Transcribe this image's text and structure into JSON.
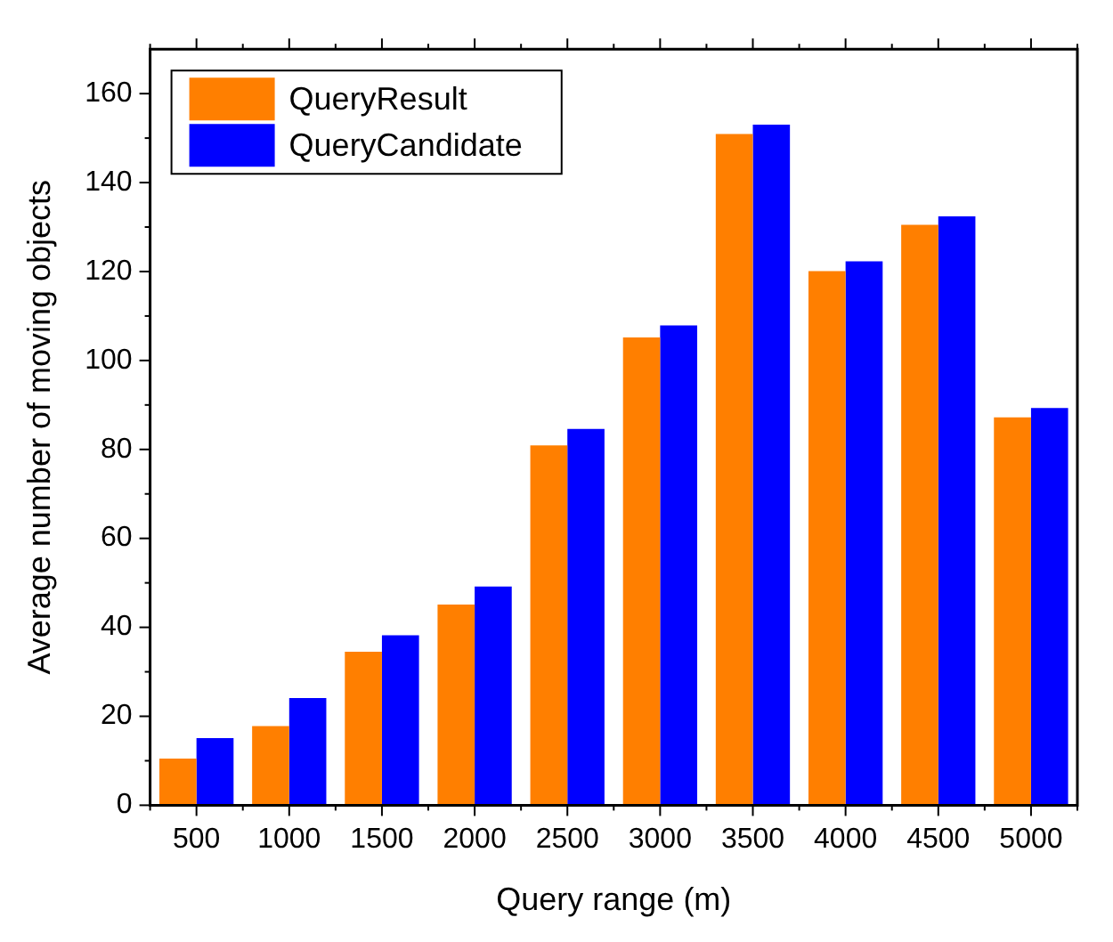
{
  "chart_data": {
    "type": "bar",
    "xlabel": "Query range (m)",
    "ylabel": "Average number of moving objects",
    "categories": [
      "500",
      "1000",
      "1500",
      "2000",
      "2500",
      "3000",
      "3500",
      "4000",
      "4500",
      "5000"
    ],
    "series": [
      {
        "name": "QueryResult",
        "color": "#ff7f00",
        "values": [
          10.5,
          17.8,
          34.5,
          45.1,
          80.9,
          105.2,
          150.9,
          120.1,
          130.5,
          87.2
        ]
      },
      {
        "name": "QueryCandidate",
        "color": "#0000ff",
        "values": [
          15.1,
          24.1,
          38.2,
          49.2,
          84.6,
          107.9,
          153,
          122.3,
          132.4,
          89.3
        ]
      }
    ],
    "ylim": [
      0,
      170
    ],
    "yticks": [
      0,
      {
        "value": 10,
        "label": null
      },
      20,
      {
        "value": 30,
        "label": null
      },
      40,
      {
        "value": 50,
        "label": null
      },
      60,
      {
        "value": 70,
        "label": null
      },
      80,
      {
        "value": 90,
        "label": null
      },
      100,
      {
        "value": 110,
        "label": null
      },
      120,
      {
        "value": 130,
        "label": null
      },
      140,
      {
        "value": 150,
        "label": null
      },
      160
    ],
    "grid": false,
    "legend": "top left"
  }
}
